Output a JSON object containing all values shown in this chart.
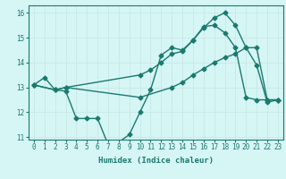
{
  "line1_x": [
    0,
    1,
    2,
    3,
    4,
    5,
    6,
    7,
    8,
    9,
    10,
    11,
    12,
    13,
    14,
    15,
    16,
    17,
    18,
    19,
    20,
    21,
    22,
    23
  ],
  "line1_y": [
    13.1,
    13.4,
    12.9,
    12.85,
    11.75,
    11.75,
    11.75,
    10.7,
    10.8,
    11.1,
    12.0,
    12.9,
    14.3,
    14.6,
    14.5,
    14.9,
    15.4,
    15.8,
    16.0,
    15.5,
    14.6,
    13.9,
    12.4,
    12.5
  ],
  "line2_x": [
    0,
    2,
    3,
    10,
    13,
    14,
    15,
    16,
    17,
    18,
    19,
    20,
    21,
    22,
    23
  ],
  "line2_y": [
    13.1,
    12.9,
    13.0,
    12.6,
    13.0,
    13.2,
    13.5,
    13.75,
    14.0,
    14.2,
    14.35,
    14.6,
    14.6,
    12.5,
    12.5
  ],
  "line3_x": [
    0,
    2,
    3,
    10,
    11,
    12,
    13,
    14,
    15,
    16,
    17,
    18,
    19,
    20,
    21,
    22,
    23
  ],
  "line3_y": [
    13.1,
    12.9,
    13.0,
    13.5,
    13.7,
    14.0,
    14.35,
    14.45,
    14.9,
    15.45,
    15.5,
    15.2,
    14.6,
    12.6,
    12.5,
    12.5,
    12.5
  ],
  "color": "#1a7a6e",
  "bg_color": "#d6f5f5",
  "grid_color": "#c8e8e8",
  "xlabel": "Humidex (Indice chaleur)",
  "ylim": [
    10.9,
    16.3
  ],
  "xlim": [
    -0.5,
    23.5
  ],
  "yticks": [
    11,
    12,
    13,
    14,
    15,
    16
  ],
  "xticks": [
    0,
    1,
    2,
    3,
    4,
    5,
    6,
    7,
    8,
    9,
    10,
    11,
    12,
    13,
    14,
    15,
    16,
    17,
    18,
    19,
    20,
    21,
    22,
    23
  ],
  "marker": "D",
  "markersize": 2.5,
  "linewidth": 1.0
}
